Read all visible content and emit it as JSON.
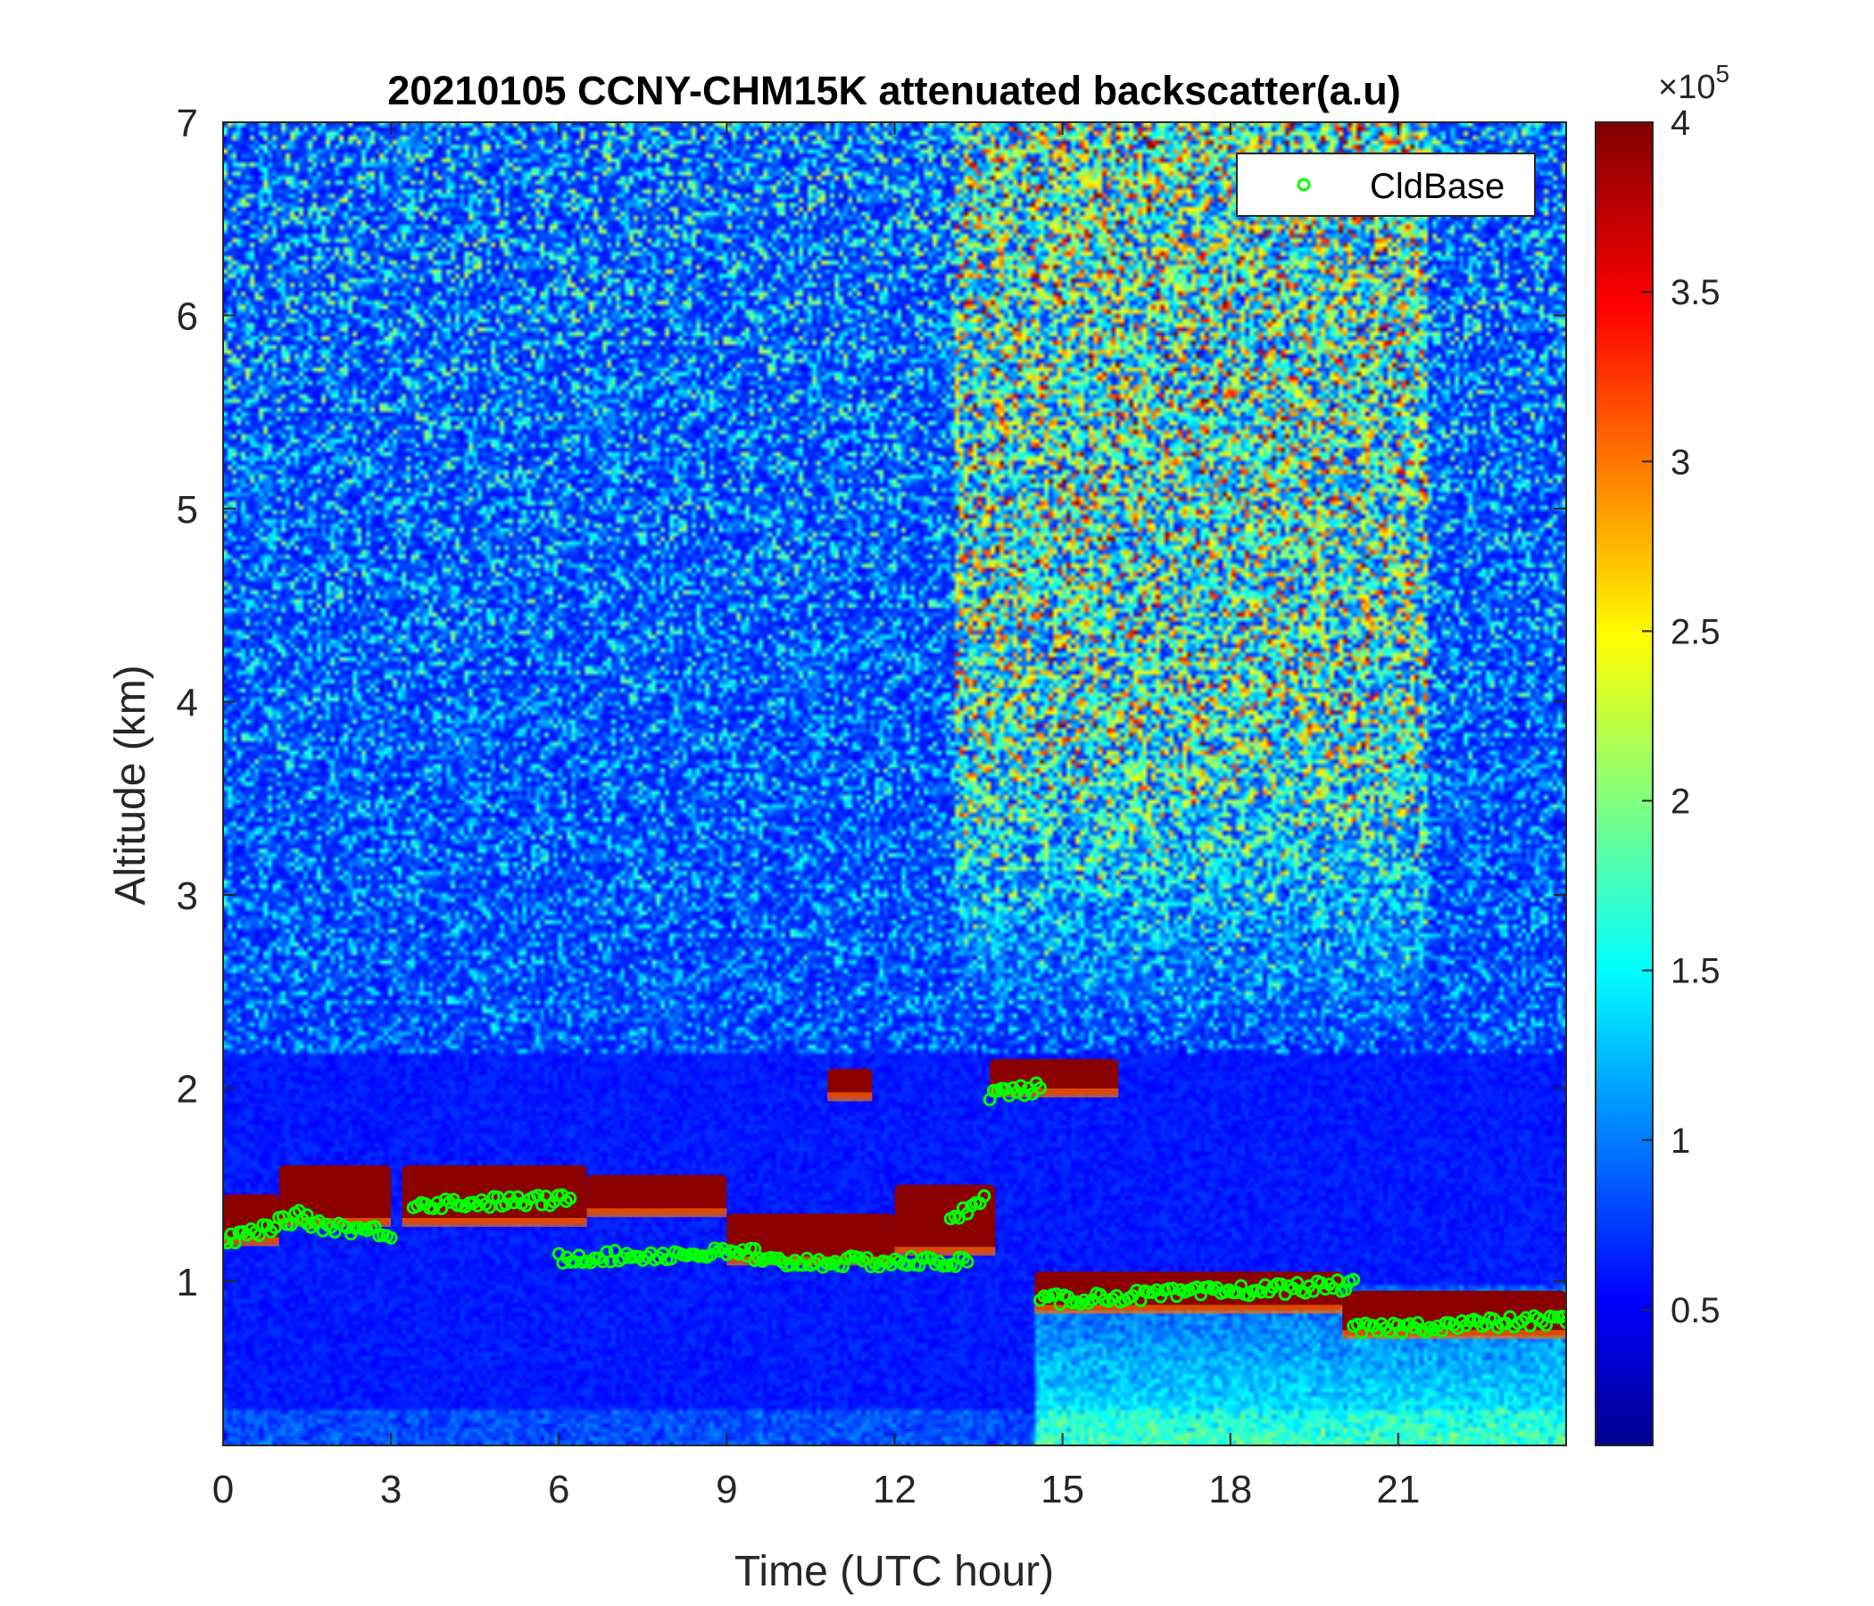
{
  "chart_data": {
    "type": "heatmap",
    "title": "20210105 CCNY-CHM15K attenuated backscatter(a.u)",
    "xlabel": "Time (UTC hour)",
    "ylabel": "Altitude (km)",
    "xlim": [
      0,
      24
    ],
    "ylim": [
      0.15,
      7
    ],
    "x_ticks": [
      0,
      3,
      6,
      9,
      12,
      15,
      18,
      21
    ],
    "y_ticks": [
      1,
      2,
      3,
      4,
      5,
      6,
      7
    ],
    "colorbar": {
      "min": 0.1,
      "max": 4,
      "ticks": [
        0.5,
        1,
        1.5,
        2,
        2.5,
        3,
        3.5,
        4
      ],
      "multiplier_base": "×10",
      "multiplier_exp": "5",
      "colormap": "jet"
    },
    "legend": {
      "placement": "top-right",
      "entries": [
        {
          "name": "CldBase",
          "marker": "circle",
          "color": "#00ff00"
        }
      ]
    },
    "layers": [
      {
        "t0": 0.0,
        "t1": 1.0,
        "base": 1.2,
        "top": 1.45
      },
      {
        "t0": 1.0,
        "t1": 3.0,
        "base": 1.3,
        "top": 1.6
      },
      {
        "t0": 3.2,
        "t1": 6.5,
        "base": 1.3,
        "top": 1.6
      },
      {
        "t0": 6.5,
        "t1": 9.0,
        "base": 1.35,
        "top": 1.55
      },
      {
        "t0": 9.0,
        "t1": 12.0,
        "base": 1.1,
        "top": 1.35
      },
      {
        "t0": 12.0,
        "t1": 13.8,
        "base": 1.15,
        "top": 1.5
      },
      {
        "t0": 10.8,
        "t1": 11.6,
        "base": 1.95,
        "top": 2.1
      },
      {
        "t0": 13.7,
        "t1": 16.0,
        "base": 1.97,
        "top": 2.15
      },
      {
        "t0": 14.5,
        "t1": 20.0,
        "base": 0.85,
        "top": 1.05
      },
      {
        "t0": 20.0,
        "t1": 24.0,
        "base": 0.72,
        "top": 0.95
      }
    ],
    "cldbase_segments": [
      {
        "t0": 0.0,
        "t1": 1.5,
        "alt0": 1.2,
        "alt1": 1.35
      },
      {
        "t0": 1.5,
        "t1": 3.0,
        "alt0": 1.3,
        "alt1": 1.25
      },
      {
        "t0": 3.4,
        "t1": 6.2,
        "alt0": 1.4,
        "alt1": 1.42
      },
      {
        "t0": 6.0,
        "t1": 9.5,
        "alt0": 1.12,
        "alt1": 1.15
      },
      {
        "t0": 9.5,
        "t1": 13.3,
        "alt0": 1.1,
        "alt1": 1.1
      },
      {
        "t0": 13.0,
        "t1": 13.6,
        "alt0": 1.3,
        "alt1": 1.45
      },
      {
        "t0": 13.7,
        "t1": 14.6,
        "alt0": 1.97,
        "alt1": 2.0
      },
      {
        "t0": 14.6,
        "t1": 20.2,
        "alt0": 0.9,
        "alt1": 0.98
      },
      {
        "t0": 20.2,
        "t1": 24.0,
        "alt0": 0.75,
        "alt1": 0.8
      }
    ]
  }
}
